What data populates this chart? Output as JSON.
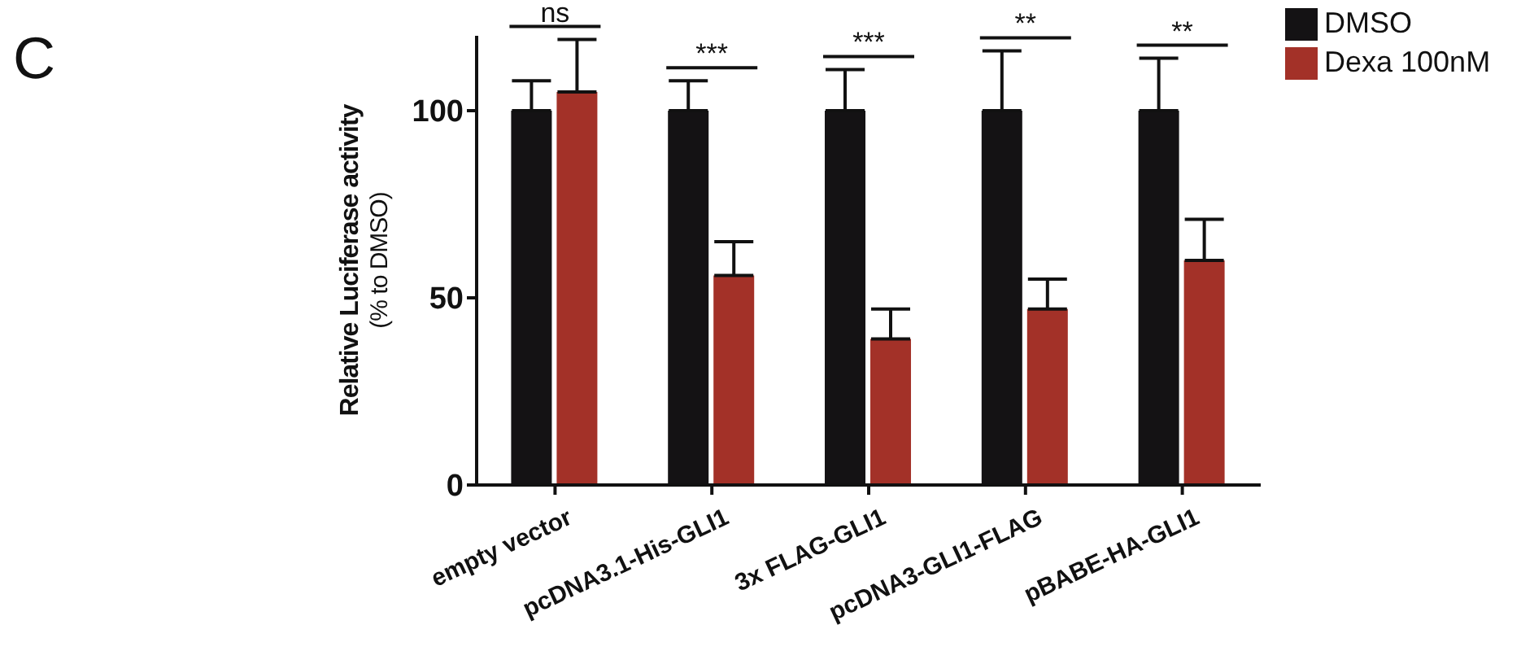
{
  "chart_data": {
    "type": "bar",
    "categories": [
      "empty vector",
      "pcDNA3.1-His-GLI1",
      "3x FLAG-GLI1",
      "pcDNA3-GLI1-FLAG",
      "pBABE-HA-GLI1"
    ],
    "ylabel": "Relative Luciferase activity\n(% to DMSO)",
    "series": [
      {
        "name": "DMSO",
        "color": "#141214",
        "values": [
          100,
          100,
          100,
          100,
          100
        ],
        "errors": [
          [
            100,
            108
          ],
          [
            100,
            108
          ],
          [
            100,
            111
          ],
          [
            100,
            116
          ],
          [
            100,
            114
          ]
        ]
      },
      {
        "name": "Dexa 100nM",
        "color": "#a33128",
        "values": [
          105,
          56,
          39,
          47,
          60
        ],
        "errors": [
          [
            105,
            119
          ],
          [
            56,
            65
          ],
          [
            39,
            47
          ],
          [
            47,
            55
          ],
          [
            60,
            71
          ]
        ]
      }
    ],
    "ylim": [
      0,
      120
    ],
    "yticks": [
      0,
      50,
      100
    ],
    "grid": false,
    "legend": "top right",
    "annotations": [
      "C",
      "ns",
      "***",
      "***",
      "**",
      "**"
    ]
  }
}
